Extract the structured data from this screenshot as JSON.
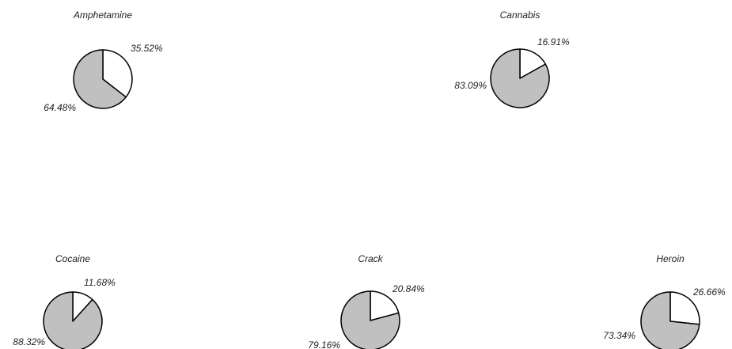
{
  "colors": {
    "slice_a": "#ffffff",
    "slice_b": "#c0c0c0",
    "stroke": "#000000"
  },
  "chart_data": [
    {
      "type": "pie",
      "title": "Amphetamine",
      "values": [
        35.52,
        64.48
      ],
      "labels": [
        "35.52%",
        "64.48%"
      ]
    },
    {
      "type": "pie",
      "title": "Cannabis",
      "values": [
        16.91,
        83.09
      ],
      "labels": [
        "16.91%",
        "83.09%"
      ]
    },
    {
      "type": "pie",
      "title": "Cocaine",
      "values": [
        11.68,
        88.32
      ],
      "labels": [
        "11.68%",
        "88.32%"
      ]
    },
    {
      "type": "pie",
      "title": "Crack",
      "values": [
        20.84,
        79.16
      ],
      "labels": [
        "20.84%",
        "79.16%"
      ]
    },
    {
      "type": "pie",
      "title": "Heroin",
      "values": [
        26.66,
        73.34
      ],
      "labels": [
        "26.66%",
        "73.34%"
      ]
    }
  ]
}
